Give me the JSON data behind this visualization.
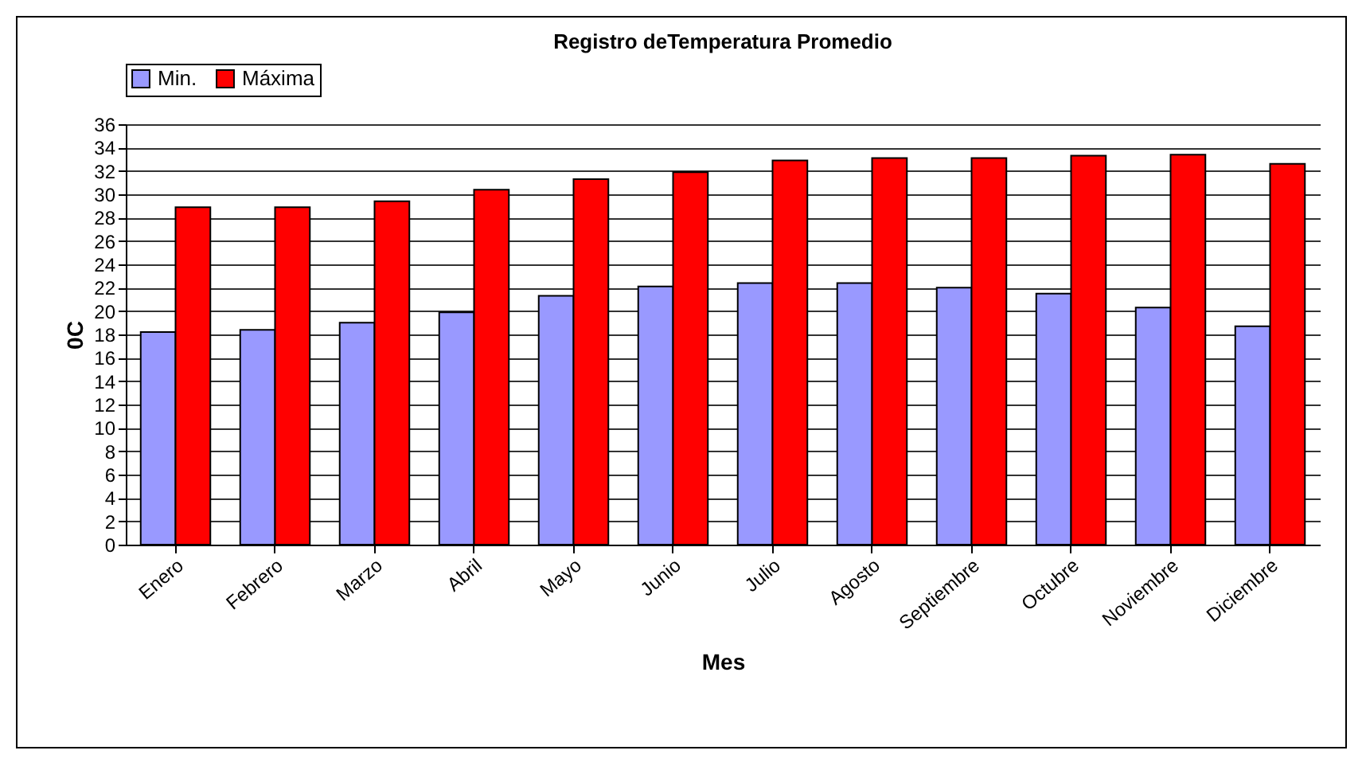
{
  "chart_data": {
    "type": "bar",
    "title": "Registro deTemperatura Promedio",
    "xlabel": "Mes",
    "ylabel": "0C",
    "categories": [
      "Enero",
      "Febrero",
      "Marzo",
      "Abril",
      "Mayo",
      "Junio",
      "Julio",
      "Agosto",
      "Septiembre",
      "Octubre",
      "Noviembre",
      "Diciembre"
    ],
    "series": [
      {
        "name": "Min.",
        "color": "#9999ff",
        "values": [
          18.2,
          18.4,
          19.0,
          19.9,
          21.3,
          22.1,
          22.4,
          22.4,
          22.0,
          21.5,
          20.3,
          18.7
        ]
      },
      {
        "name": "Máxima",
        "color": "#ff0000",
        "values": [
          28.9,
          28.9,
          29.4,
          30.4,
          31.3,
          31.9,
          32.9,
          33.1,
          33.1,
          33.3,
          33.4,
          32.6
        ]
      }
    ],
    "ylim": [
      0,
      36
    ],
    "yticks": [
      0,
      2,
      4,
      6,
      8,
      10,
      12,
      14,
      16,
      18,
      20,
      22,
      24,
      26,
      28,
      30,
      32,
      34,
      36
    ],
    "grid": "y",
    "legend": "top"
  }
}
